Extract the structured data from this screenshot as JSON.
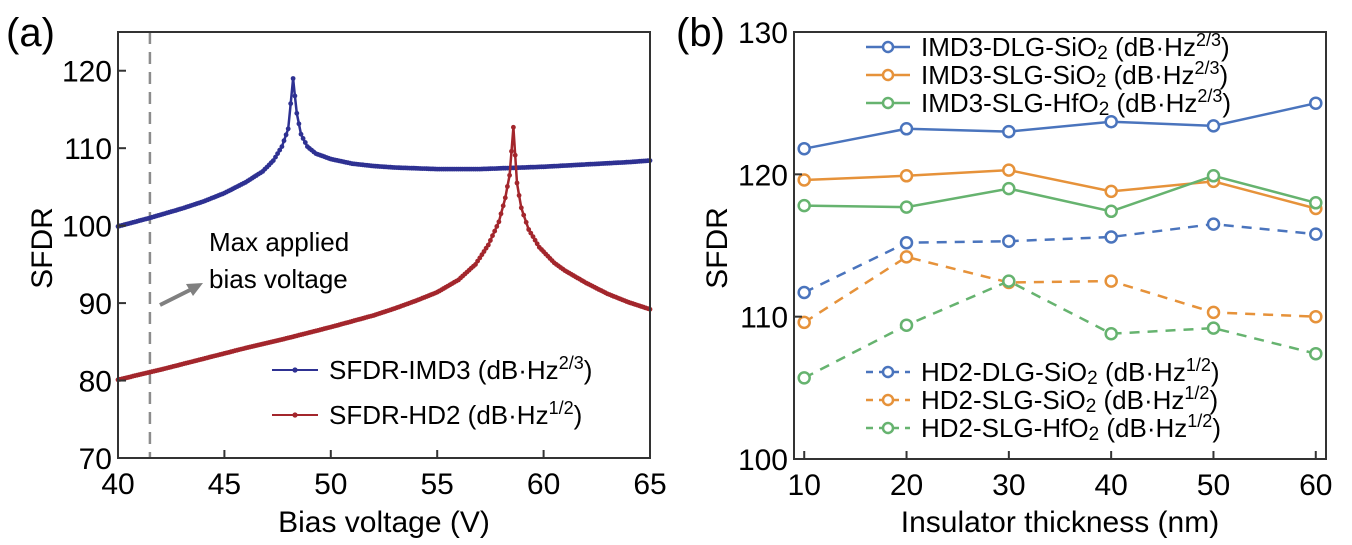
{
  "chart_data": [
    {
      "panel": "(a)",
      "type": "line",
      "title": "",
      "xlabel": "Bias voltage (V)",
      "ylabel": "SFDR",
      "xlim": [
        40,
        65
      ],
      "ylim": [
        70,
        125
      ],
      "xticks": [
        40,
        45,
        50,
        55,
        60,
        65
      ],
      "yticks": [
        70,
        80,
        90,
        100,
        110,
        120
      ],
      "grid": false,
      "legend_position": "bottom-right",
      "series": [
        {
          "name": "SFDR-IMD3",
          "unit_base": "(dB·Hz",
          "unit_sup": "2/3",
          "unit_close": ")",
          "color": "#2e3192",
          "marker": "dot",
          "x": [
            40,
            41.5,
            43,
            44,
            45,
            46,
            46.8,
            47.3,
            47.7,
            48.0,
            48.23,
            48.4,
            48.6,
            48.9,
            49.3,
            50,
            51,
            52,
            53,
            55,
            57,
            58,
            60,
            62,
            64,
            65
          ],
          "y": [
            99.9,
            101.0,
            102.2,
            103.1,
            104.2,
            105.6,
            107.0,
            108.4,
            110.2,
            112.5,
            119.0,
            114.5,
            111.8,
            110.2,
            109.3,
            108.6,
            108.0,
            107.7,
            107.5,
            107.3,
            107.3,
            107.4,
            107.6,
            107.9,
            108.2,
            108.4
          ]
        },
        {
          "name": "SFDR-HD2",
          "unit_base": "(dB·Hz",
          "unit_sup": "1/2",
          "unit_close": ")",
          "color": "#a3262c",
          "marker": "dot",
          "x": [
            40,
            42,
            44,
            46,
            48,
            50,
            52,
            53,
            54,
            55,
            56,
            56.8,
            57.4,
            57.9,
            58.2,
            58.4,
            58.58,
            58.75,
            58.95,
            59.3,
            59.8,
            60.5,
            61,
            62,
            63,
            64,
            65
          ],
          "y": [
            80.1,
            81.4,
            82.8,
            84.2,
            85.5,
            86.9,
            88.4,
            89.3,
            90.3,
            91.4,
            93.0,
            95.0,
            97.5,
            100.5,
            103.6,
            106.5,
            112.7,
            105.5,
            102.3,
            99.5,
            97.2,
            95.2,
            94.2,
            92.6,
            91.2,
            90.1,
            89.2
          ]
        }
      ],
      "annotations": {
        "vline_x": 41.5,
        "text_line1": "Max applied",
        "text_line2": "bias voltage",
        "arrow": "pointing toward annotation text"
      }
    },
    {
      "panel": "(b)",
      "type": "line",
      "title": "",
      "xlabel": "Insulator thickness (nm)",
      "ylabel": "SFDR",
      "xlim": [
        9,
        61
      ],
      "ylim": [
        100,
        130
      ],
      "xticks": [
        10,
        20,
        30,
        40,
        50,
        60
      ],
      "yticks": [
        100,
        110,
        120,
        130
      ],
      "grid": false,
      "categories": [
        10,
        20,
        30,
        40,
        50,
        60
      ],
      "series": [
        {
          "name": "IMD3-DLG-SiO",
          "sub": "2",
          "unit_base": " (dB·Hz",
          "unit_sup": "2/3",
          "unit_close": ")",
          "color": "#4a74bd",
          "style": "solid",
          "marker": "open-circle",
          "values": [
            121.8,
            123.2,
            123.0,
            123.7,
            123.4,
            125.0
          ]
        },
        {
          "name": "IMD3-SLG-SiO",
          "sub": "2",
          "unit_base": " (dB·Hz",
          "unit_sup": "2/3",
          "unit_close": ")",
          "color": "#e6923a",
          "style": "solid",
          "marker": "open-circle",
          "values": [
            119.6,
            119.9,
            120.3,
            118.8,
            119.5,
            117.6
          ]
        },
        {
          "name": "IMD3-SLG-HfO",
          "sub": "2",
          "unit_base": " (dB·Hz",
          "unit_sup": "2/3",
          "unit_close": ")",
          "color": "#66b36f",
          "style": "solid",
          "marker": "open-circle",
          "values": [
            117.8,
            117.7,
            119.0,
            117.4,
            119.9,
            118.0
          ]
        },
        {
          "name": "HD2-DLG-SiO",
          "sub": "2",
          "unit_base": " (dB·Hz",
          "unit_sup": "1/2",
          "unit_close": ")",
          "color": "#4a74bd",
          "style": "dashed",
          "marker": "open-circle",
          "values": [
            111.7,
            115.2,
            115.3,
            115.6,
            116.5,
            115.8
          ]
        },
        {
          "name": "HD2-SLG-SiO",
          "sub": "2",
          "unit_base": " (dB·Hz",
          "unit_sup": "1/2",
          "unit_close": ")",
          "color": "#e6923a",
          "style": "dashed",
          "marker": "open-circle",
          "values": [
            109.6,
            114.2,
            112.4,
            112.5,
            110.3,
            110.0
          ]
        },
        {
          "name": "HD2-SLG-HfO",
          "sub": "2",
          "unit_base": " (dB·Hz",
          "unit_sup": "1/2",
          "unit_close": ")",
          "color": "#66b36f",
          "style": "dashed",
          "marker": "open-circle",
          "values": [
            105.7,
            109.4,
            112.5,
            108.8,
            109.2,
            107.4
          ]
        }
      ],
      "legend_position": "top (solid series) and bottom (dashed series)"
    }
  ]
}
